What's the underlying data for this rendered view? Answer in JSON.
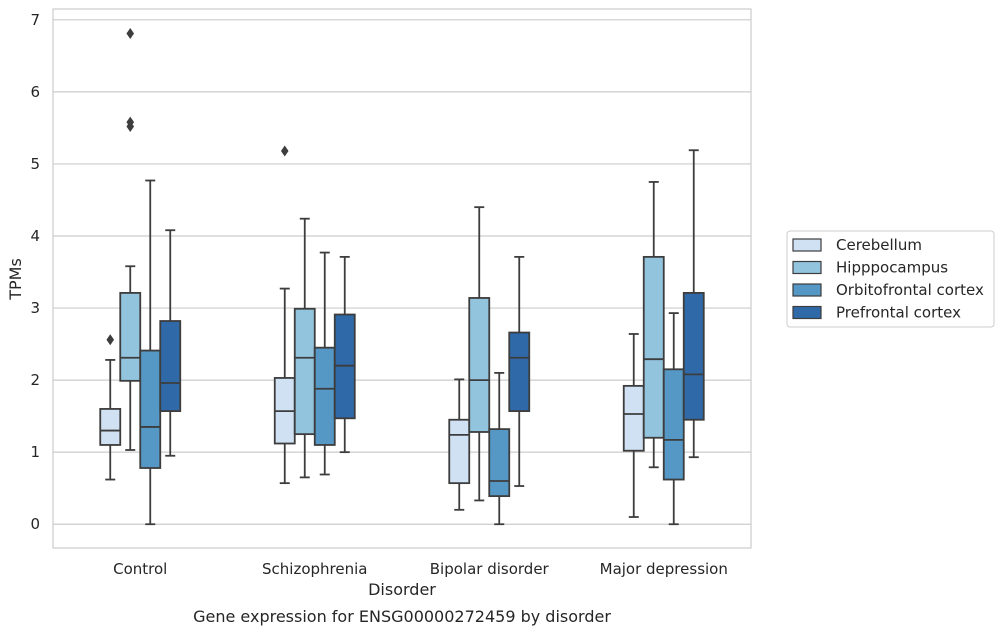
{
  "chart_data": {
    "type": "box",
    "xlabel": "Disorder",
    "ylabel": "TPMs",
    "caption": "Gene expression for ENSG00000272459 by disorder",
    "ylim": [
      -0.33,
      7.15
    ],
    "yticks": [
      0,
      1,
      2,
      3,
      4,
      5,
      6,
      7
    ],
    "grid": "horizontal",
    "legend_position": "right",
    "categories": [
      "Control",
      "Schizophrenia",
      "Bipolar disorder",
      "Major depression"
    ],
    "series": [
      {
        "name": "Cerebellum",
        "color": "#cfe1f2",
        "boxes": [
          {
            "whisker_low": 0.62,
            "q1": 1.1,
            "median": 1.3,
            "q3": 1.6,
            "whisker_high": 2.28,
            "outliers": [
              2.56
            ]
          },
          {
            "whisker_low": 0.57,
            "q1": 1.12,
            "median": 1.57,
            "q3": 2.03,
            "whisker_high": 3.27,
            "outliers": [
              5.18
            ]
          },
          {
            "whisker_low": 0.2,
            "q1": 0.57,
            "median": 1.24,
            "q3": 1.45,
            "whisker_high": 2.01,
            "outliers": []
          },
          {
            "whisker_low": 0.1,
            "q1": 1.02,
            "median": 1.53,
            "q3": 1.92,
            "whisker_high": 2.64,
            "outliers": []
          }
        ]
      },
      {
        "name": "Hipppocampus",
        "color": "#93c4de",
        "boxes": [
          {
            "whisker_low": 1.03,
            "q1": 1.99,
            "median": 2.31,
            "q3": 3.21,
            "whisker_high": 3.58,
            "outliers": [
              5.52,
              5.58,
              6.81
            ]
          },
          {
            "whisker_low": 0.65,
            "q1": 1.25,
            "median": 2.31,
            "q3": 2.99,
            "whisker_high": 4.24,
            "outliers": []
          },
          {
            "whisker_low": 0.33,
            "q1": 1.28,
            "median": 2.0,
            "q3": 3.14,
            "whisker_high": 4.4,
            "outliers": []
          },
          {
            "whisker_low": 0.79,
            "q1": 1.2,
            "median": 2.29,
            "q3": 3.71,
            "whisker_high": 4.75,
            "outliers": []
          }
        ]
      },
      {
        "name": "Orbitofrontal cortex",
        "color": "#5597c5",
        "boxes": [
          {
            "whisker_low": 0.0,
            "q1": 0.78,
            "median": 1.35,
            "q3": 2.41,
            "whisker_high": 4.77,
            "outliers": []
          },
          {
            "whisker_low": 0.69,
            "q1": 1.1,
            "median": 1.88,
            "q3": 2.45,
            "whisker_high": 3.77,
            "outliers": []
          },
          {
            "whisker_low": 0.0,
            "q1": 0.39,
            "median": 0.6,
            "q3": 1.32,
            "whisker_high": 2.1,
            "outliers": []
          },
          {
            "whisker_low": 0.0,
            "q1": 0.62,
            "median": 1.17,
            "q3": 2.15,
            "whisker_high": 2.93,
            "outliers": []
          }
        ]
      },
      {
        "name": "Prefrontal cortex",
        "color": "#2f69a8",
        "boxes": [
          {
            "whisker_low": 0.95,
            "q1": 1.57,
            "median": 1.96,
            "q3": 2.82,
            "whisker_high": 4.08,
            "outliers": []
          },
          {
            "whisker_low": 1.0,
            "q1": 1.47,
            "median": 2.2,
            "q3": 2.91,
            "whisker_high": 3.71,
            "outliers": []
          },
          {
            "whisker_low": 0.53,
            "q1": 1.57,
            "median": 2.31,
            "q3": 2.66,
            "whisker_high": 3.71,
            "outliers": []
          },
          {
            "whisker_low": 0.93,
            "q1": 1.45,
            "median": 2.08,
            "q3": 3.21,
            "whisker_high": 5.19,
            "outliers": []
          }
        ]
      }
    ]
  }
}
